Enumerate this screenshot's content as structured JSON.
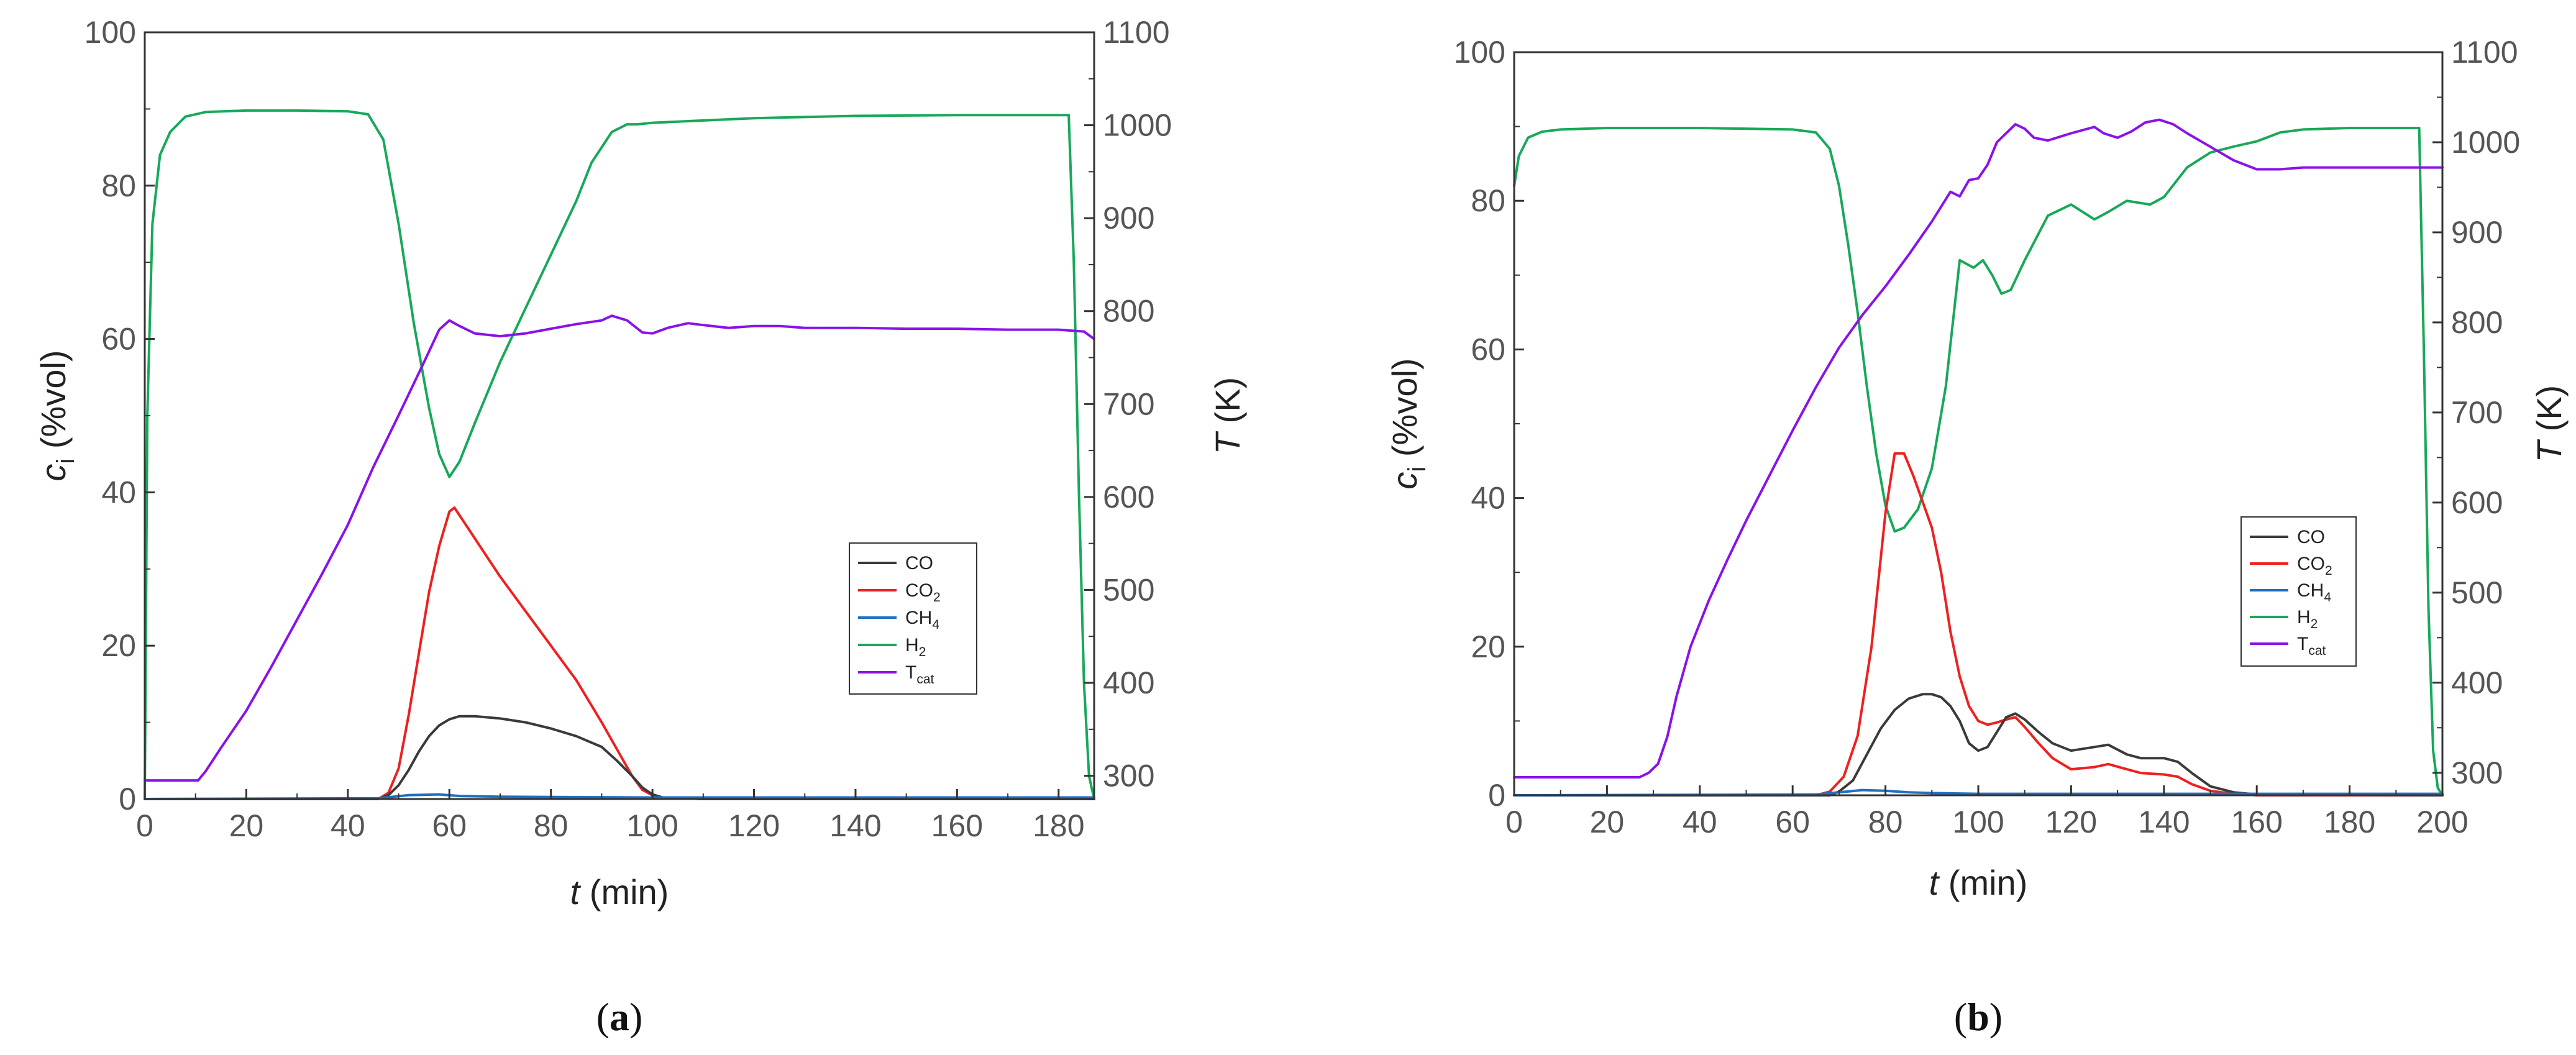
{
  "figure": {
    "panels": [
      "(a)",
      "(b)"
    ]
  },
  "chart_data": [
    {
      "panel_label": "(a)",
      "panel_letter": "a",
      "type": "line",
      "xlabel": {
        "italic": "t",
        "rest": " (min)"
      },
      "ylabel": {
        "symbol": "c",
        "sub": "i",
        "rest": " (%vol)"
      },
      "y2label": {
        "italic": "T",
        "rest": " (K)"
      },
      "xlim": [
        0,
        187
      ],
      "ylim": [
        0,
        100
      ],
      "y2lim": [
        275,
        1100
      ],
      "xticks": [
        0,
        20,
        40,
        60,
        80,
        100,
        120,
        140,
        160,
        180
      ],
      "yticks": [
        0,
        20,
        40,
        60,
        80,
        100
      ],
      "y2ticks": [
        300,
        400,
        500,
        600,
        700,
        800,
        900,
        1000,
        1100
      ],
      "legend": [
        {
          "key": "CO",
          "base": "CO",
          "sub": "",
          "color": "#3a3a3a"
        },
        {
          "key": "CO2",
          "base": "CO",
          "sub": "2",
          "color": "#ee2020"
        },
        {
          "key": "CH4",
          "base": "CH",
          "sub": "4",
          "color": "#1f6fc4"
        },
        {
          "key": "H2",
          "base": "H",
          "sub": "2",
          "color": "#18a85a"
        },
        {
          "key": "Tcat",
          "base": "T",
          "sub": "cat",
          "color": "#8a12e8"
        }
      ],
      "series": [
        {
          "name": "H2",
          "axis": "left",
          "color": "#18a85a",
          "x": [
            0,
            0.5,
            1.5,
            3,
            5,
            8,
            12,
            20,
            30,
            40,
            44,
            47,
            50,
            53,
            56,
            58,
            60,
            62,
            65,
            70,
            75,
            80,
            85,
            88,
            92,
            95,
            97,
            100,
            110,
            120,
            140,
            160,
            182,
            183,
            184,
            185,
            186,
            187
          ],
          "y": [
            0,
            50,
            75,
            84,
            87,
            89,
            89.6,
            89.8,
            89.8,
            89.7,
            89.3,
            86,
            75,
            62,
            51,
            45,
            42,
            44,
            49,
            57,
            64,
            71,
            78,
            83,
            87,
            88,
            88,
            88.2,
            88.5,
            88.8,
            89.1,
            89.2,
            89.2,
            70,
            40,
            15,
            3,
            0
          ]
        },
        {
          "name": "Tcat",
          "axis": "right",
          "color": "#8a12e8",
          "x": [
            0,
            5,
            10.5,
            12,
            15,
            20,
            25,
            30,
            35,
            40,
            45,
            50,
            55,
            58,
            60,
            62,
            65,
            70,
            75,
            80,
            85,
            90,
            92,
            95,
            98,
            100,
            103,
            107,
            110,
            115,
            120,
            125,
            130,
            140,
            150,
            160,
            170,
            180,
            185,
            187
          ],
          "y": [
            295,
            295,
            295,
            305,
            330,
            370,
            418,
            468,
            518,
            570,
            632,
            688,
            745,
            780,
            790,
            784,
            776,
            773,
            776,
            781,
            786,
            790,
            795,
            790,
            777,
            776,
            782,
            787,
            785,
            782,
            784,
            784,
            782,
            782,
            781,
            781,
            780,
            780,
            778,
            770
          ]
        },
        {
          "name": "CO2",
          "axis": "left",
          "color": "#ee2020",
          "x": [
            0,
            46,
            48,
            50,
            52,
            54,
            56,
            58,
            60,
            61,
            62,
            64,
            66,
            70,
            75,
            80,
            85,
            90,
            93,
            96,
            98,
            100,
            102,
            110,
            150,
            187
          ],
          "y": [
            0,
            0,
            0.8,
            4,
            11,
            19,
            27,
            33,
            37.5,
            38,
            37,
            35,
            33,
            29,
            24.5,
            20,
            15.5,
            10,
            6.5,
            3,
            1.2,
            0.5,
            0.2,
            0,
            0,
            0
          ]
        },
        {
          "name": "CO",
          "axis": "left",
          "color": "#3a3a3a",
          "x": [
            0,
            46,
            48,
            50,
            52,
            54,
            56,
            58,
            60,
            62,
            65,
            70,
            75,
            80,
            85,
            90,
            93,
            96,
            98,
            100,
            102,
            110,
            187
          ],
          "y": [
            0,
            0,
            0.5,
            1.8,
            3.8,
            6.2,
            8.2,
            9.6,
            10.4,
            10.8,
            10.8,
            10.5,
            10,
            9.2,
            8.2,
            6.8,
            5,
            3,
            1.5,
            0.6,
            0.2,
            0,
            0
          ]
        },
        {
          "name": "CH4",
          "axis": "left",
          "color": "#1f6fc4",
          "x": [
            0,
            46,
            52,
            58,
            62,
            70,
            100,
            187
          ],
          "y": [
            0,
            0.1,
            0.5,
            0.6,
            0.4,
            0.3,
            0.2,
            0.2
          ]
        }
      ]
    },
    {
      "panel_label": "(b)",
      "panel_letter": "b",
      "type": "line",
      "xlabel": {
        "italic": "t",
        "rest": " (min)"
      },
      "ylabel": {
        "symbol": "c",
        "sub": "i",
        "rest": " (%vol)"
      },
      "y2label": {
        "italic": "T",
        "rest": " (K)"
      },
      "xlim": [
        0,
        200
      ],
      "ylim": [
        0,
        100
      ],
      "y2lim": [
        275,
        1100
      ],
      "xticks": [
        0,
        20,
        40,
        60,
        80,
        100,
        120,
        140,
        160,
        180,
        200
      ],
      "yticks": [
        0,
        20,
        40,
        60,
        80,
        100
      ],
      "y2ticks": [
        300,
        400,
        500,
        600,
        700,
        800,
        900,
        1000,
        1100
      ],
      "legend": [
        {
          "key": "CO",
          "base": "CO",
          "sub": "",
          "color": "#3a3a3a"
        },
        {
          "key": "CO2",
          "base": "CO",
          "sub": "2",
          "color": "#ee2020"
        },
        {
          "key": "CH4",
          "base": "CH",
          "sub": "4",
          "color": "#1f6fc4"
        },
        {
          "key": "H2",
          "base": "H",
          "sub": "2",
          "color": "#18a85a"
        },
        {
          "key": "Tcat",
          "base": "T",
          "sub": "cat",
          "color": "#8a12e8"
        }
      ],
      "series": [
        {
          "name": "H2",
          "axis": "left",
          "color": "#18a85a",
          "x": [
            0,
            1,
            3,
            6,
            10,
            20,
            40,
            60,
            65,
            68,
            70,
            72,
            74,
            76,
            78,
            80,
            82,
            84,
            87,
            90,
            93,
            96,
            99,
            101,
            103,
            105,
            107,
            110,
            115,
            120,
            125,
            128,
            132,
            137,
            140,
            145,
            150,
            155,
            160,
            165,
            170,
            180,
            190,
            195,
            196,
            197,
            198,
            199,
            200
          ],
          "y": [
            82,
            86,
            88.5,
            89.3,
            89.6,
            89.8,
            89.8,
            89.6,
            89.2,
            87,
            82,
            74,
            65,
            55,
            46,
            39,
            35.5,
            36,
            38.5,
            44,
            55,
            72,
            71,
            72,
            70,
            67.5,
            68,
            72,
            78,
            79.5,
            77.5,
            78.5,
            80,
            79.5,
            80.5,
            84.5,
            86.5,
            87.3,
            88,
            89.2,
            89.6,
            89.8,
            89.8,
            89.8,
            60,
            25,
            6,
            1,
            0
          ]
        },
        {
          "name": "Tcat",
          "axis": "right",
          "color": "#8a12e8",
          "x": [
            0,
            10,
            20,
            27,
            29,
            31,
            33,
            35,
            38,
            42,
            46,
            50,
            55,
            60,
            65,
            70,
            75,
            80,
            85,
            90,
            94,
            96,
            98,
            100,
            102,
            104,
            106,
            108,
            110,
            112,
            115,
            120,
            125,
            127,
            130,
            133,
            136,
            139,
            142,
            145,
            150,
            155,
            160,
            165,
            170,
            180,
            190,
            200
          ],
          "y": [
            295,
            295,
            295,
            295,
            300,
            310,
            340,
            385,
            440,
            492,
            537,
            580,
            630,
            680,
            728,
            772,
            808,
            840,
            875,
            912,
            945,
            940,
            958,
            960,
            975,
            1000,
            1010,
            1020,
            1015,
            1005,
            1002,
            1010,
            1017,
            1010,
            1005,
            1012,
            1022,
            1025,
            1020,
            1010,
            995,
            980,
            970,
            970,
            972,
            972,
            972,
            972
          ]
        },
        {
          "name": "CO2",
          "axis": "left",
          "color": "#ee2020",
          "x": [
            0,
            65,
            68,
            71,
            74,
            77,
            80,
            82,
            84,
            86,
            88,
            90,
            92,
            94,
            96,
            98,
            100,
            102,
            104,
            106,
            108,
            110,
            113,
            116,
            120,
            125,
            128,
            132,
            135,
            140,
            143,
            146,
            150,
            155,
            160,
            200
          ],
          "y": [
            0,
            0,
            0.5,
            2.5,
            8,
            20,
            38,
            46,
            46,
            43,
            39.5,
            36,
            30,
            22,
            16,
            12,
            10,
            9.5,
            9.8,
            10.2,
            10.5,
            9.2,
            7,
            5,
            3.5,
            3.8,
            4.2,
            3.5,
            3,
            2.8,
            2.5,
            1.5,
            0.6,
            0.2,
            0,
            0
          ]
        },
        {
          "name": "CO",
          "axis": "left",
          "color": "#3a3a3a",
          "x": [
            0,
            68,
            70,
            73,
            76,
            79,
            82,
            85,
            88,
            90,
            92,
            94,
            96,
            98,
            100,
            102,
            104,
            106,
            108,
            110,
            113,
            116,
            120,
            125,
            128,
            132,
            135,
            140,
            143,
            146,
            150,
            155,
            160,
            200
          ],
          "y": [
            0,
            0,
            0.5,
            2,
            5.5,
            9,
            11.5,
            13,
            13.6,
            13.6,
            13.2,
            12,
            10,
            7,
            6,
            6.5,
            8.5,
            10.5,
            11,
            10.2,
            8.5,
            7,
            6,
            6.5,
            6.8,
            5.5,
            5,
            5,
            4.5,
            3,
            1.2,
            0.4,
            0.1,
            0
          ]
        },
        {
          "name": "CH4",
          "axis": "left",
          "color": "#1f6fc4",
          "x": [
            0,
            65,
            70,
            75,
            80,
            85,
            90,
            100,
            200
          ],
          "y": [
            0,
            0.1,
            0.4,
            0.7,
            0.6,
            0.4,
            0.3,
            0.2,
            0.2
          ]
        }
      ]
    }
  ]
}
